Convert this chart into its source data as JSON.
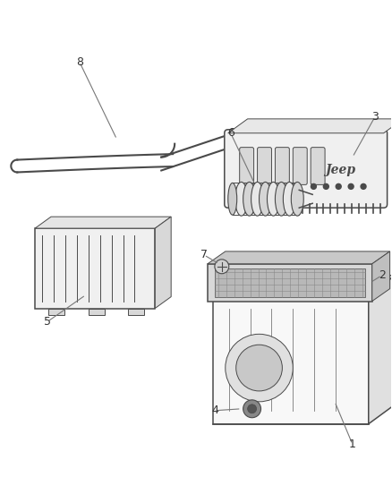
{
  "bg_color": "#ffffff",
  "line_color": "#4a4a4a",
  "text_color": "#333333",
  "lw_main": 1.1,
  "lw_thin": 0.7
}
